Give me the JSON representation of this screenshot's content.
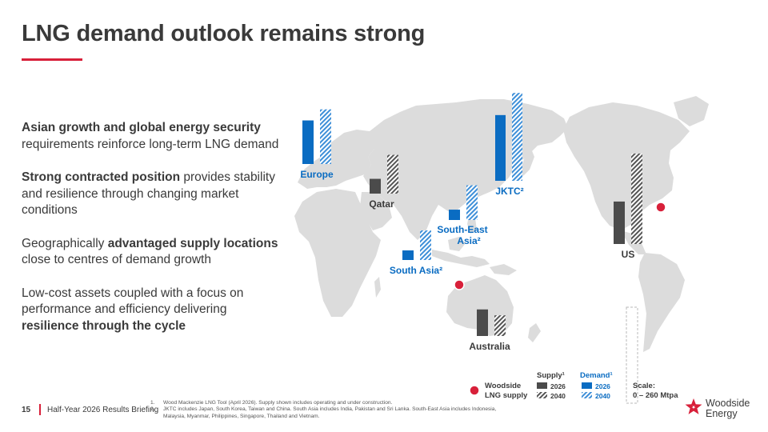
{
  "title": "LNG demand outlook remains strong",
  "bullets": [
    {
      "parts": [
        {
          "text": "Asian growth and global energy security",
          "bold": true
        },
        {
          "text": " requirements reinforce long-term LNG demand",
          "bold": false
        }
      ]
    },
    {
      "parts": [
        {
          "text": "Strong contracted position",
          "bold": true
        },
        {
          "text": " provides stability and resilience through changing market conditions",
          "bold": false
        }
      ]
    },
    {
      "parts": [
        {
          "text": "Geographically ",
          "bold": false
        },
        {
          "text": "advantaged supply locations",
          "bold": true
        },
        {
          "text": " close to centres of demand growth",
          "bold": false
        }
      ]
    },
    {
      "parts": [
        {
          "text": "Low-cost assets coupled with a focus on performance and efficiency delivering ",
          "bold": false
        },
        {
          "text": "resilience through the cycle",
          "bold": true
        }
      ]
    }
  ],
  "chart_data": {
    "type": "bar",
    "scale_label": "Scale:",
    "scale_range": "0 – 260 Mtpa",
    "ylim": [
      0,
      260
    ],
    "regions": [
      {
        "name": "Europe",
        "supply_2026": 0,
        "supply_2040": 0,
        "demand_2026": 118,
        "demand_2040": 148
      },
      {
        "name": "Qatar",
        "supply_2026": 40,
        "supply_2040": 105,
        "demand_2026": 0,
        "demand_2040": 0
      },
      {
        "name": "JKTC²",
        "supply_2026": 0,
        "supply_2040": 0,
        "demand_2026": 178,
        "demand_2040": 238
      },
      {
        "name": "South-East Asia²",
        "supply_2026": 0,
        "supply_2040": 0,
        "demand_2026": 28,
        "demand_2040": 94
      },
      {
        "name": "South Asia²",
        "supply_2026": 0,
        "supply_2040": 0,
        "demand_2026": 26,
        "demand_2040": 80
      },
      {
        "name": "US",
        "supply_2026": 115,
        "supply_2040": 245,
        "demand_2026": 0,
        "demand_2040": 0
      },
      {
        "name": "Australia",
        "supply_2026": 72,
        "supply_2040": 56,
        "demand_2026": 0,
        "demand_2040": 0
      }
    ],
    "legend": {
      "supply_header": "Supply¹",
      "demand_header": "Demand¹",
      "year_2026": "2026",
      "year_2040": "2040",
      "woodside_line1": "Woodside",
      "woodside_line2": "LNG supply"
    },
    "colors": {
      "demand": "#0a6cc2",
      "demand_hatch": "#3e8fd8",
      "supply": "#4b4b4b",
      "map": "#dcdcdc",
      "marker": "#d8203a"
    }
  },
  "footer": {
    "page": "15",
    "label": "Half-Year 2026 Results Briefing",
    "notes": [
      {
        "num": "1.",
        "text": "Wood Mackenzie LNG Tool (April 2026). Supply shown includes operating and under construction."
      },
      {
        "num": "2.",
        "text": "JKTC includes Japan, South Korea, Taiwan and China. South Asia includes India, Pakistan and Sri Lanka. South-East Asia includes Indonesia, Malaysia, Myanmar, Philippines, Singapore, Thailand and Vietnam."
      }
    ]
  },
  "logo": {
    "line1": "Woodside",
    "line2": "Energy"
  },
  "accent_color": "#d8203a"
}
